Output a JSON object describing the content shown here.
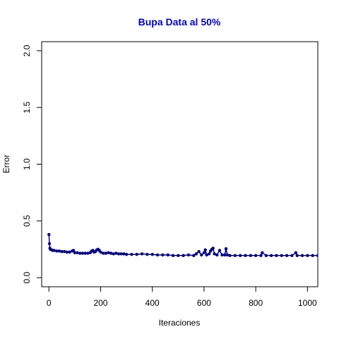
{
  "chart_data": {
    "type": "scatter",
    "title": "Bupa Data al 50%",
    "xlabel": "Iteraciones",
    "ylabel": "Error",
    "xlim": [
      -28,
      1040
    ],
    "ylim": [
      -0.08,
      2.08
    ],
    "x_ticks": [
      0,
      200,
      400,
      600,
      800,
      1000
    ],
    "y_ticks": [
      0.0,
      0.5,
      1.0,
      1.5,
      2.0
    ],
    "x_tick_labels": [
      "0",
      "200",
      "400",
      "600",
      "800",
      "1000"
    ],
    "y_tick_labels": [
      "0.0",
      "0.5",
      "1.0",
      "1.5",
      "2.0"
    ],
    "grid": false,
    "legend": "none",
    "series": [
      {
        "points": [
          [
            0,
            0.38
          ],
          [
            2,
            0.3
          ],
          [
            4,
            0.26
          ],
          [
            6,
            0.25
          ],
          [
            10,
            0.245
          ],
          [
            15,
            0.24
          ],
          [
            20,
            0.24
          ],
          [
            30,
            0.235
          ],
          [
            40,
            0.235
          ],
          [
            50,
            0.23
          ],
          [
            60,
            0.23
          ],
          [
            70,
            0.225
          ],
          [
            80,
            0.225
          ],
          [
            90,
            0.235
          ],
          [
            95,
            0.24
          ],
          [
            100,
            0.22
          ],
          [
            110,
            0.22
          ],
          [
            120,
            0.215
          ],
          [
            130,
            0.215
          ],
          [
            140,
            0.215
          ],
          [
            150,
            0.215
          ],
          [
            160,
            0.22
          ],
          [
            165,
            0.235
          ],
          [
            170,
            0.24
          ],
          [
            175,
            0.225
          ],
          [
            180,
            0.23
          ],
          [
            185,
            0.245
          ],
          [
            190,
            0.25
          ],
          [
            195,
            0.24
          ],
          [
            200,
            0.225
          ],
          [
            210,
            0.215
          ],
          [
            220,
            0.215
          ],
          [
            230,
            0.22
          ],
          [
            240,
            0.215
          ],
          [
            250,
            0.21
          ],
          [
            260,
            0.215
          ],
          [
            270,
            0.21
          ],
          [
            280,
            0.21
          ],
          [
            290,
            0.21
          ],
          [
            300,
            0.205
          ],
          [
            320,
            0.205
          ],
          [
            340,
            0.205
          ],
          [
            360,
            0.21
          ],
          [
            380,
            0.205
          ],
          [
            400,
            0.205
          ],
          [
            420,
            0.2
          ],
          [
            440,
            0.2
          ],
          [
            460,
            0.2
          ],
          [
            480,
            0.195
          ],
          [
            500,
            0.195
          ],
          [
            520,
            0.195
          ],
          [
            540,
            0.2
          ],
          [
            560,
            0.195
          ],
          [
            570,
            0.21
          ],
          [
            580,
            0.23
          ],
          [
            590,
            0.2
          ],
          [
            600,
            0.22
          ],
          [
            605,
            0.245
          ],
          [
            610,
            0.2
          ],
          [
            620,
            0.21
          ],
          [
            625,
            0.235
          ],
          [
            630,
            0.25
          ],
          [
            635,
            0.26
          ],
          [
            640,
            0.21
          ],
          [
            650,
            0.2
          ],
          [
            660,
            0.24
          ],
          [
            670,
            0.2
          ],
          [
            680,
            0.2
          ],
          [
            685,
            0.255
          ],
          [
            690,
            0.2
          ],
          [
            700,
            0.195
          ],
          [
            720,
            0.195
          ],
          [
            740,
            0.195
          ],
          [
            760,
            0.195
          ],
          [
            780,
            0.195
          ],
          [
            800,
            0.195
          ],
          [
            820,
            0.195
          ],
          [
            825,
            0.22
          ],
          [
            840,
            0.195
          ],
          [
            860,
            0.195
          ],
          [
            880,
            0.195
          ],
          [
            900,
            0.195
          ],
          [
            920,
            0.195
          ],
          [
            940,
            0.195
          ],
          [
            955,
            0.22
          ],
          [
            960,
            0.195
          ],
          [
            980,
            0.195
          ],
          [
            1000,
            0.195
          ],
          [
            1020,
            0.195
          ],
          [
            1040,
            0.195
          ]
        ]
      }
    ],
    "colors": {
      "title": "#0000cc",
      "points": "#00008b",
      "axis": "#000000"
    }
  }
}
